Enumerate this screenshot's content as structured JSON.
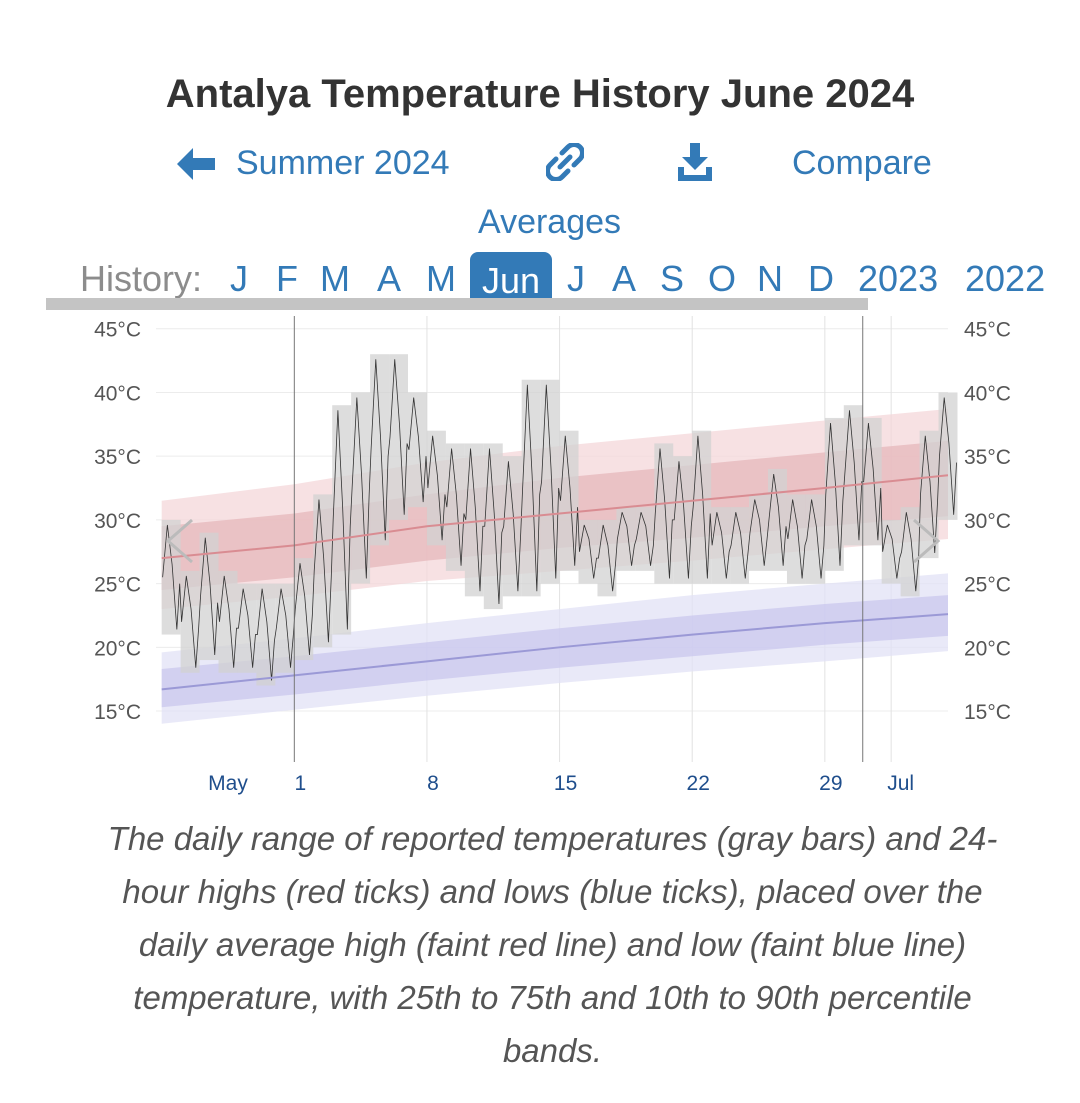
{
  "page": {
    "title": "Antalya Temperature History June 2024",
    "caption": "The daily range of reported temperatures (gray bars) and 24-hour highs (red ticks) and lows (blue ticks), placed over the daily average high (faint red line) and low (faint blue line) temperature, with 25th to 75th and 10th to 90th percentile bands."
  },
  "nav": {
    "back_label": "Summer 2024",
    "back_icon": "arrow-left-icon",
    "link_icon": "link-icon",
    "download_icon": "download-icon",
    "compare_label": "Compare",
    "averages_label": "Averages"
  },
  "history": {
    "label": "History:",
    "items": [
      "J",
      "F",
      "M",
      "A",
      "M",
      "Jun",
      "J",
      "A",
      "S",
      "O",
      "N",
      "D",
      "2023",
      "2022"
    ],
    "active": "Jun"
  },
  "colors": {
    "accent": "#337ab7",
    "high_band_outer": "#f4d7d9",
    "high_band_inner": "#e6b7bb",
    "high_line": "#d98c92",
    "low_band_outer": "#e2e1f6",
    "low_band_inner": "#c9c7ee",
    "low_line": "#9b99d6",
    "range_bar": "#d2d2d2"
  },
  "chart_data": {
    "type": "range-bar-line",
    "title": "Antalya Temperature History June 2024",
    "ylim": [
      11,
      46
    ],
    "xlim": [
      -7.3,
      34.5
    ],
    "y_ticks": [
      15,
      20,
      25,
      30,
      35,
      40,
      45
    ],
    "y_tick_labels": [
      "15°C",
      "20°C",
      "25°C",
      "30°C",
      "35°C",
      "40°C",
      "45°C"
    ],
    "x_ticks": [
      {
        "label": "May",
        "day": -3.5
      },
      {
        "label": "1",
        "day": 0
      },
      {
        "label": "8",
        "day": 7
      },
      {
        "label": "15",
        "day": 14
      },
      {
        "label": "22",
        "day": 21
      },
      {
        "label": "29",
        "day": 28
      },
      {
        "label": "Jul",
        "day": 32
      }
    ],
    "month_boundaries": [
      0,
      30
    ],
    "week_gridlines": [
      7,
      14,
      21,
      28,
      31.5
    ],
    "daily_ranges": [
      {
        "day": -6.5,
        "min": 21,
        "max": 30
      },
      {
        "day": -5.5,
        "min": 18,
        "max": 26
      },
      {
        "day": -4.5,
        "min": 19,
        "max": 29
      },
      {
        "day": -3.5,
        "min": 18,
        "max": 26
      },
      {
        "day": -2.5,
        "min": 18,
        "max": 25
      },
      {
        "day": -1.5,
        "min": 17,
        "max": 25
      },
      {
        "day": -0.5,
        "min": 18,
        "max": 25
      },
      {
        "day": 0.5,
        "min": 19,
        "max": 27
      },
      {
        "day": 1.5,
        "min": 20,
        "max": 32
      },
      {
        "day": 2.5,
        "min": 21,
        "max": 39
      },
      {
        "day": 3.5,
        "min": 25,
        "max": 40
      },
      {
        "day": 4.5,
        "min": 28,
        "max": 43
      },
      {
        "day": 5.5,
        "min": 30,
        "max": 43
      },
      {
        "day": 6.5,
        "min": 31,
        "max": 40
      },
      {
        "day": 7.5,
        "min": 28,
        "max": 37
      },
      {
        "day": 8.5,
        "min": 26,
        "max": 36
      },
      {
        "day": 9.5,
        "min": 24,
        "max": 36
      },
      {
        "day": 10.5,
        "min": 23,
        "max": 36
      },
      {
        "day": 11.5,
        "min": 24,
        "max": 35
      },
      {
        "day": 12.5,
        "min": 24,
        "max": 41
      },
      {
        "day": 13.5,
        "min": 25,
        "max": 41
      },
      {
        "day": 14.5,
        "min": 26,
        "max": 37
      },
      {
        "day": 15.5,
        "min": 25,
        "max": 30
      },
      {
        "day": 16.5,
        "min": 24,
        "max": 30
      },
      {
        "day": 17.5,
        "min": 26,
        "max": 31
      },
      {
        "day": 18.5,
        "min": 26,
        "max": 31
      },
      {
        "day": 19.5,
        "min": 25,
        "max": 36
      },
      {
        "day": 20.5,
        "min": 25,
        "max": 35
      },
      {
        "day": 21.5,
        "min": 25,
        "max": 37
      },
      {
        "day": 22.5,
        "min": 25,
        "max": 31
      },
      {
        "day": 23.5,
        "min": 25,
        "max": 31
      },
      {
        "day": 24.5,
        "min": 26,
        "max": 32
      },
      {
        "day": 25.5,
        "min": 26,
        "max": 34
      },
      {
        "day": 26.5,
        "min": 25,
        "max": 32
      },
      {
        "day": 27.5,
        "min": 25,
        "max": 32
      },
      {
        "day": 28.5,
        "min": 26,
        "max": 38
      },
      {
        "day": 29.5,
        "min": 28,
        "max": 39
      },
      {
        "day": 30.5,
        "min": 28,
        "max": 38
      },
      {
        "day": 31.5,
        "min": 25,
        "max": 30
      },
      {
        "day": 32.5,
        "min": 24,
        "max": 31
      },
      {
        "day": 33.5,
        "min": 27,
        "max": 37
      },
      {
        "day": 34.5,
        "min": 30,
        "max": 40
      }
    ],
    "avg_high": {
      "days": [
        -7,
        0,
        7,
        14,
        21,
        28,
        34.5
      ],
      "values": [
        27.0,
        28.0,
        29.5,
        30.5,
        31.5,
        32.5,
        33.5
      ],
      "p25_75": [
        [
          24.5,
          29.5
        ],
        [
          25.5,
          30.5
        ],
        [
          26.8,
          32.0
        ],
        [
          27.8,
          33.3
        ],
        [
          28.6,
          34.3
        ],
        [
          29.5,
          35.3
        ],
        [
          30.3,
          36.2
        ]
      ],
      "p10_90": [
        [
          23.0,
          31.5
        ],
        [
          24.0,
          32.8
        ],
        [
          25.2,
          34.5
        ],
        [
          26.0,
          35.8
        ],
        [
          26.8,
          36.8
        ],
        [
          27.7,
          37.8
        ],
        [
          28.5,
          38.7
        ]
      ]
    },
    "avg_low": {
      "days": [
        -7,
        0,
        7,
        14,
        21,
        28,
        34.5
      ],
      "values": [
        16.7,
        17.8,
        18.9,
        20.0,
        21.0,
        21.9,
        22.6
      ],
      "p25_75": [
        [
          15.3,
          18.3
        ],
        [
          16.3,
          19.3
        ],
        [
          17.4,
          20.4
        ],
        [
          18.4,
          21.5
        ],
        [
          19.3,
          22.5
        ],
        [
          20.2,
          23.4
        ],
        [
          20.9,
          24.1
        ]
      ],
      "p10_90": [
        [
          14.0,
          19.6
        ],
        [
          15.1,
          20.7
        ],
        [
          16.2,
          21.9
        ],
        [
          17.2,
          23.0
        ],
        [
          18.1,
          24.1
        ],
        [
          18.9,
          25.0
        ],
        [
          19.7,
          25.8
        ]
      ]
    }
  }
}
